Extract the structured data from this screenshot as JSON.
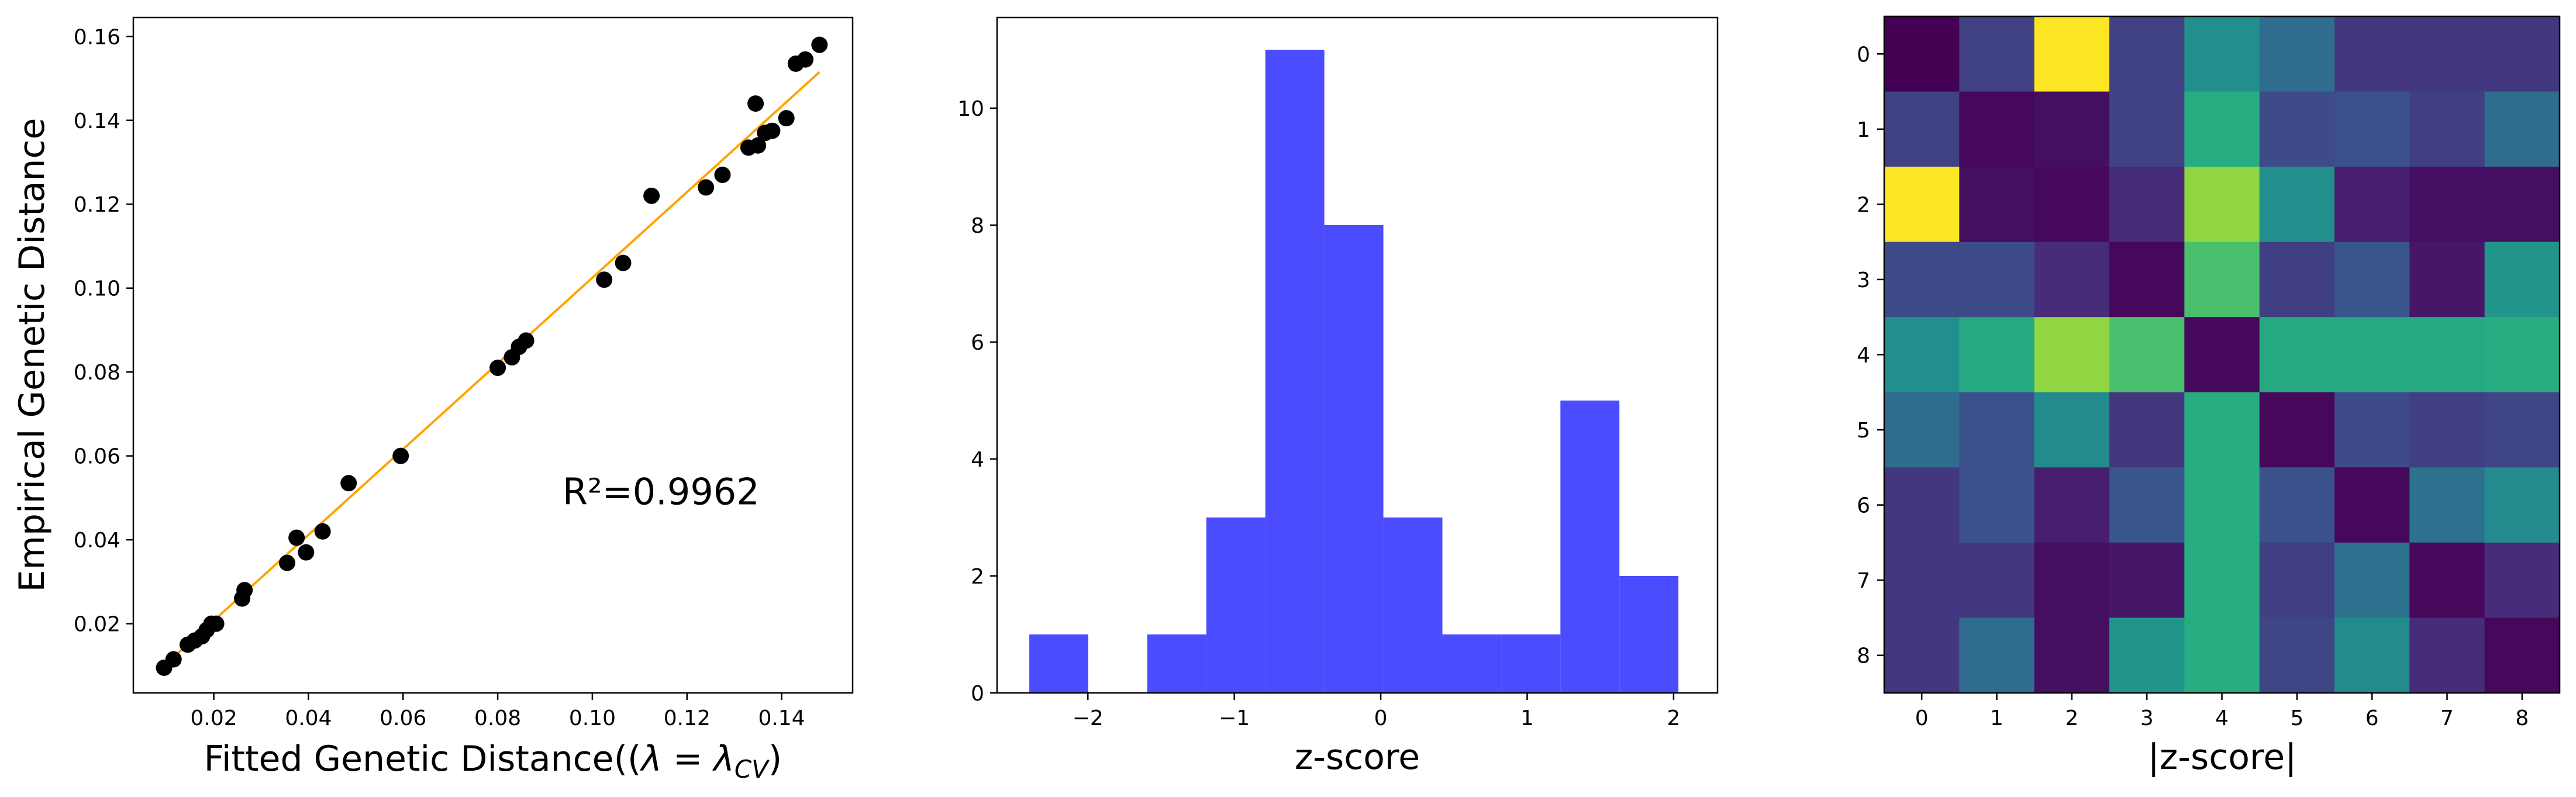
{
  "chart_data": [
    {
      "type": "scatter",
      "xlabel": "Fitted Genetic Distance((",
      "xlabel_math": "λ = λ",
      "xlabel_math_sub": "CV",
      "xlabel_close": ")",
      "ylabel": "Empirical Genetic Distance",
      "xlim": [
        0.003,
        0.155
      ],
      "ylim": [
        0.0035,
        0.1645
      ],
      "xticks": [
        0.02,
        0.04,
        0.06,
        0.08,
        0.1,
        0.12,
        0.14
      ],
      "xtick_labels": [
        "0.02",
        "0.04",
        "0.06",
        "0.08",
        "0.10",
        "0.12",
        "0.14"
      ],
      "yticks": [
        0.02,
        0.04,
        0.06,
        0.08,
        0.1,
        0.12,
        0.14,
        0.16
      ],
      "ytick_labels": [
        "0.02",
        "0.04",
        "0.06",
        "0.08",
        "0.10",
        "0.12",
        "0.14",
        "0.16"
      ],
      "annotation": "R²=0.9962",
      "annotation_data_pos": [
        0.1145,
        0.0515
      ],
      "fit_line": {
        "x": [
          0.009,
          0.148
        ],
        "y": [
          0.0095,
          0.1515
        ],
        "color": "#FFA500"
      },
      "point_color": "#000000",
      "points": [
        [
          0.0095,
          0.0095
        ],
        [
          0.0115,
          0.0115
        ],
        [
          0.0145,
          0.015
        ],
        [
          0.016,
          0.016
        ],
        [
          0.0175,
          0.017
        ],
        [
          0.0185,
          0.0185
        ],
        [
          0.0195,
          0.02
        ],
        [
          0.0205,
          0.02
        ],
        [
          0.026,
          0.026
        ],
        [
          0.0265,
          0.028
        ],
        [
          0.0355,
          0.0345
        ],
        [
          0.0375,
          0.0405
        ],
        [
          0.0395,
          0.037
        ],
        [
          0.043,
          0.042
        ],
        [
          0.0485,
          0.0535
        ],
        [
          0.0595,
          0.06
        ],
        [
          0.08,
          0.081
        ],
        [
          0.083,
          0.0835
        ],
        [
          0.0845,
          0.086
        ],
        [
          0.086,
          0.0875
        ],
        [
          0.1025,
          0.102
        ],
        [
          0.1065,
          0.106
        ],
        [
          0.1125,
          0.122
        ],
        [
          0.124,
          0.124
        ],
        [
          0.1275,
          0.127
        ],
        [
          0.133,
          0.1335
        ],
        [
          0.1345,
          0.144
        ],
        [
          0.135,
          0.134
        ],
        [
          0.1365,
          0.137
        ],
        [
          0.138,
          0.1375
        ],
        [
          0.141,
          0.1405
        ],
        [
          0.143,
          0.1535
        ],
        [
          0.145,
          0.1545
        ],
        [
          0.148,
          0.158
        ]
      ]
    },
    {
      "type": "bar",
      "subtype": "histogram",
      "xlabel": "z-score",
      "ylabel": "",
      "xlim": [
        -2.62,
        2.3
      ],
      "ylim": [
        0,
        11.55
      ],
      "xticks": [
        -2,
        -1,
        0,
        1,
        2
      ],
      "xtick_labels": [
        "−2",
        "−1",
        "0",
        "1",
        "2"
      ],
      "yticks": [
        0,
        2,
        4,
        6,
        8,
        10
      ],
      "ytick_labels": [
        "0",
        "2",
        "4",
        "6",
        "8",
        "10"
      ],
      "bar_color": "#0000FF",
      "bar_alpha": 0.7,
      "bin_edges": [
        -2.4,
        -1.997,
        -1.594,
        -1.191,
        -0.788,
        -0.385,
        0.018,
        0.421,
        0.824,
        1.227,
        1.63,
        2.033
      ],
      "values": [
        1,
        0,
        1,
        3,
        11,
        8,
        3,
        1,
        1,
        5,
        2
      ]
    },
    {
      "type": "heatmap",
      "xlabel": "|z-score|",
      "ylabel": "",
      "xtick_labels": [
        "0",
        "1",
        "2",
        "3",
        "4",
        "5",
        "6",
        "7",
        "8"
      ],
      "ytick_labels": [
        "0",
        "1",
        "2",
        "3",
        "4",
        "5",
        "6",
        "7",
        "8"
      ],
      "colormap": "viridis",
      "range": [
        0,
        2.4
      ],
      "values": [
        [
          0.0,
          0.48,
          2.4,
          0.48,
          1.2,
          0.85,
          0.4,
          0.4,
          0.4
        ],
        [
          0.48,
          0.05,
          0.1,
          0.48,
          1.5,
          0.55,
          0.6,
          0.45,
          0.85
        ],
        [
          2.4,
          0.1,
          0.05,
          0.3,
          2.0,
          1.2,
          0.2,
          0.1,
          0.1
        ],
        [
          0.55,
          0.55,
          0.3,
          0.05,
          1.7,
          0.45,
          0.65,
          0.15,
          1.25
        ],
        [
          1.2,
          1.45,
          2.0,
          1.7,
          0.05,
          1.45,
          1.45,
          1.45,
          1.5
        ],
        [
          0.85,
          0.6,
          1.15,
          0.4,
          1.5,
          0.05,
          0.55,
          0.45,
          0.5
        ],
        [
          0.4,
          0.6,
          0.2,
          0.65,
          1.5,
          0.6,
          0.05,
          0.9,
          1.15
        ],
        [
          0.4,
          0.4,
          0.1,
          0.15,
          1.5,
          0.45,
          0.9,
          0.05,
          0.3
        ],
        [
          0.4,
          0.85,
          0.1,
          1.25,
          1.5,
          0.5,
          1.15,
          0.3,
          0.05
        ]
      ]
    }
  ]
}
